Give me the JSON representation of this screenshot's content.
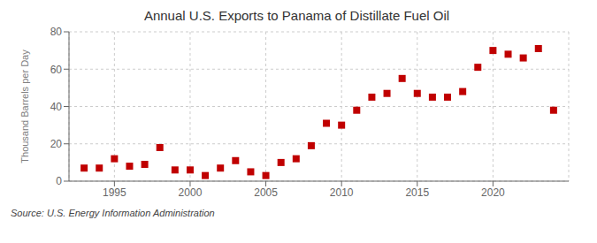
{
  "chart_data": {
    "type": "scatter",
    "title": "Annual U.S. Exports to Panama of Distillate Fuel Oil",
    "y_label": "Thousand Barrels per Day",
    "source": "Source: U.S. Energy Information Administration",
    "x": [
      1993,
      1994,
      1995,
      1996,
      1997,
      1998,
      1999,
      2000,
      2001,
      2002,
      2003,
      2004,
      2005,
      2006,
      2007,
      2008,
      2009,
      2010,
      2011,
      2012,
      2013,
      2014,
      2015,
      2016,
      2017,
      2018,
      2019,
      2020,
      2021,
      2022,
      2023,
      2024
    ],
    "values": [
      7,
      7,
      12,
      8,
      9,
      18,
      6,
      6,
      3,
      7,
      11,
      5,
      3,
      10,
      12,
      19,
      31,
      30,
      38,
      45,
      47,
      55,
      47,
      45,
      45,
      48,
      61,
      70,
      68,
      66,
      71,
      38
    ],
    "color": "#c00000",
    "marker": "square",
    "xlim": [
      1992,
      2025
    ],
    "xticks": [
      1995,
      2000,
      2005,
      2010,
      2015,
      2020
    ],
    "ylim": [
      0,
      80
    ],
    "yticks": [
      0,
      20,
      40,
      60,
      80
    ],
    "grid": true
  }
}
